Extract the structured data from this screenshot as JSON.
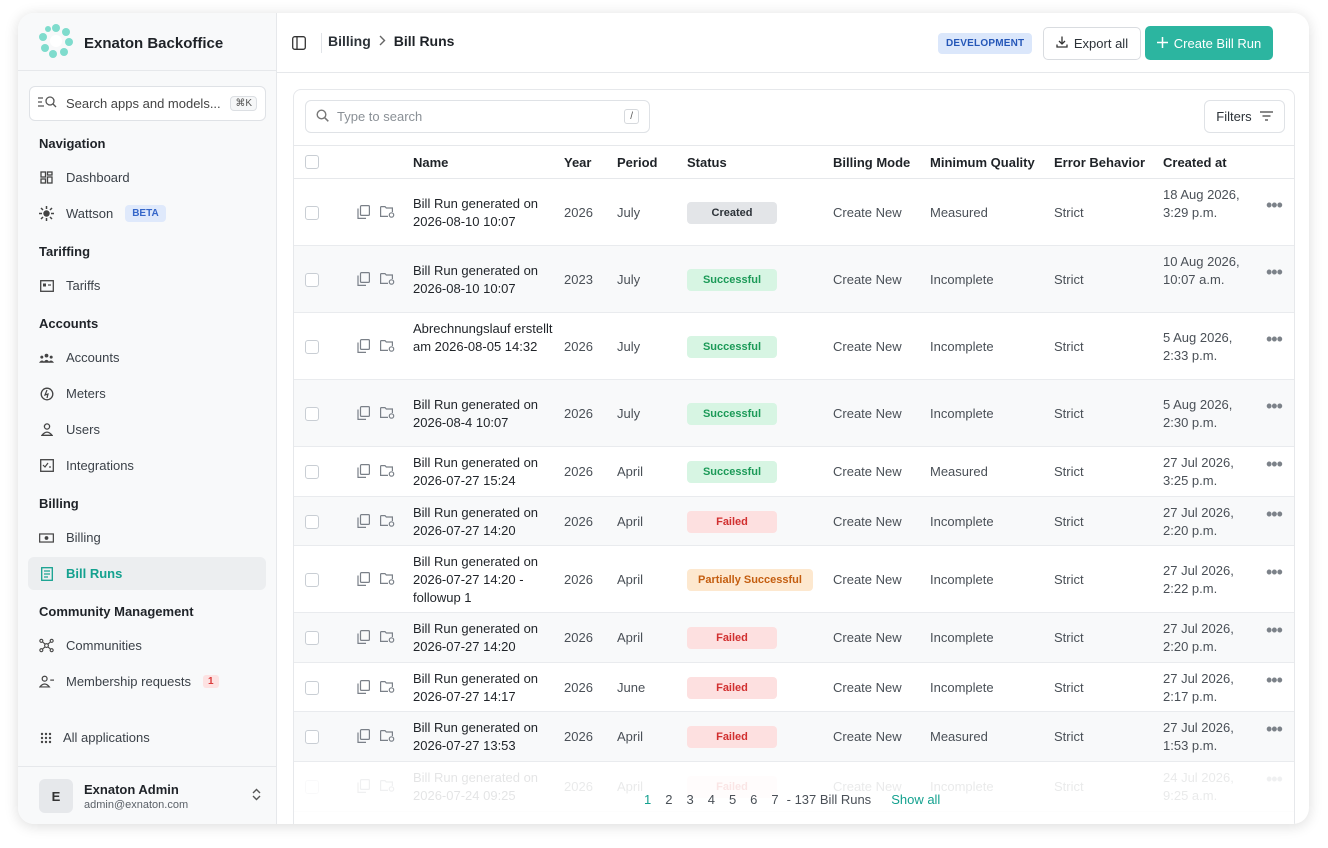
{
  "app": {
    "name": "Exnaton Backoffice"
  },
  "search_apps": {
    "placeholder": "Search apps and models...",
    "shortcut": "⌘K"
  },
  "nav": {
    "sections": {
      "navigation": "Navigation",
      "tariffing": "Tariffing",
      "accounts": "Accounts",
      "billing": "Billing",
      "community": "Community Management"
    },
    "items": {
      "dashboard": "Dashboard",
      "wattson": "Wattson",
      "wattson_badge": "BETA",
      "tariffs": "Tariffs",
      "accounts": "Accounts",
      "meters": "Meters",
      "users": "Users",
      "integrations": "Integrations",
      "billing": "Billing",
      "bill_runs": "Bill Runs",
      "communities": "Communities",
      "membership_requests": "Membership requests",
      "membership_count": "1",
      "all_applications": "All applications"
    },
    "active_item": "Bill Runs"
  },
  "user": {
    "initial": "E",
    "name": "Exnaton Admin",
    "email": "admin@exnaton.com"
  },
  "header": {
    "breadcrumb_parent": "Billing",
    "breadcrumb_current": "Bill Runs",
    "environment": "DEVELOPMENT",
    "export_label": "Export all",
    "create_label": "Create Bill Run"
  },
  "table": {
    "search_placeholder": "Type to search",
    "search_shortcut": "/",
    "filters_label": "Filters",
    "columns": {
      "name": "Name",
      "year": "Year",
      "period": "Period",
      "status": "Status",
      "billing_mode": "Billing Mode",
      "minimum_quality": "Minimum Quality",
      "error_behavior": "Error Behavior",
      "created_at": "Created at"
    },
    "rows": [
      {
        "name": "Bill Run generated on 2026-08-10 10:07",
        "year": "2026",
        "period": "July",
        "status": "Created",
        "billing_mode": "Create New",
        "minimum_quality": "Measured",
        "error_behavior": "Strict",
        "created_at": "18 Aug 2026, 3:29 p.m."
      },
      {
        "name": "Bill Run generated on 2026-08-10 10:07",
        "year": "2023",
        "period": "July",
        "status": "Successful",
        "billing_mode": "Create New",
        "minimum_quality": "Incomplete",
        "error_behavior": "Strict",
        "created_at": "10 Aug 2026, 10:07 a.m."
      },
      {
        "name": "Abrechnungslauf erstellt am 2026-08-05 14:32",
        "year": "2026",
        "period": "July",
        "status": "Successful",
        "billing_mode": "Create New",
        "minimum_quality": "Incomplete",
        "error_behavior": "Strict",
        "created_at": "5 Aug 2026, 2:33 p.m."
      },
      {
        "name": "Bill Run generated on 2026-08-4 10:07",
        "year": "2026",
        "period": "July",
        "status": "Successful",
        "billing_mode": "Create New",
        "minimum_quality": "Incomplete",
        "error_behavior": "Strict",
        "created_at": "5 Aug 2026, 2:30 p.m."
      },
      {
        "name": "Bill Run generated on 2026-07-27 15:24",
        "year": "2026",
        "period": "April",
        "status": "Successful",
        "billing_mode": "Create New",
        "minimum_quality": "Measured",
        "error_behavior": "Strict",
        "created_at": "27 Jul 2026, 3:25 p.m."
      },
      {
        "name": "Bill Run generated on 2026-07-27 14:20",
        "year": "2026",
        "period": "April",
        "status": "Failed",
        "billing_mode": "Create New",
        "minimum_quality": "Incomplete",
        "error_behavior": "Strict",
        "created_at": "27 Jul 2026, 2:20 p.m."
      },
      {
        "name": "Bill Run generated on 2026-07-27 14:20 - followup 1",
        "year": "2026",
        "period": "April",
        "status": "Partially Successful",
        "billing_mode": "Create New",
        "minimum_quality": "Incomplete",
        "error_behavior": "Strict",
        "created_at": "27 Jul 2026, 2:22 p.m."
      },
      {
        "name": "Bill Run generated on 2026-07-27 14:20",
        "year": "2026",
        "period": "April",
        "status": "Failed",
        "billing_mode": "Create New",
        "minimum_quality": "Incomplete",
        "error_behavior": "Strict",
        "created_at": "27 Jul 2026, 2:20 p.m."
      },
      {
        "name": "Bill Run generated on 2026-07-27 14:17",
        "year": "2026",
        "period": "June",
        "status": "Failed",
        "billing_mode": "Create New",
        "minimum_quality": "Incomplete",
        "error_behavior": "Strict",
        "created_at": "27 Jul 2026, 2:17 p.m."
      },
      {
        "name": "Bill Run generated on 2026-07-27 13:53",
        "year": "2026",
        "period": "April",
        "status": "Failed",
        "billing_mode": "Create New",
        "minimum_quality": "Measured",
        "error_behavior": "Strict",
        "created_at": "27 Jul 2026, 1:53 p.m."
      },
      {
        "name": "Bill Run generated on 2026-07-24 09:25",
        "year": "2026",
        "period": "April",
        "status": "Failed",
        "billing_mode": "Create New",
        "minimum_quality": "Incomplete",
        "error_behavior": "Strict",
        "created_at": "24 Jul 2026, 9:25 a.m."
      }
    ]
  },
  "pagination": {
    "pages": [
      "1",
      "2",
      "3",
      "4",
      "5",
      "6",
      "7"
    ],
    "current": "1",
    "total_label": "- 137 Bill Runs",
    "show_all": "Show all"
  },
  "colors": {
    "accent": "#2cb5a0",
    "accent_text": "#14a18f"
  }
}
